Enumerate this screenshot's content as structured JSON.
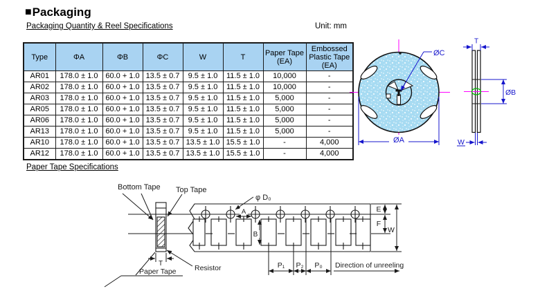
{
  "page": {
    "title_bullet": "■",
    "title": "Packaging",
    "section1": "Packaging Quantity & Reel Specifications",
    "unit_label": "Unit: mm",
    "section2": "Paper Tape Specifications"
  },
  "table": {
    "headers": [
      "Type",
      "ΦA",
      "ΦB",
      "ΦC",
      "W",
      "T",
      "Paper Tape (EA)",
      "Embossed Plastic Tape (EA)"
    ],
    "rows": [
      [
        "AR01",
        "178.0 ± 1.0",
        "60.0 + 1.0",
        "13.5 ± 0.7",
        "9.5 ± 1.0",
        "11.5 ± 1.0",
        "10,000",
        "-"
      ],
      [
        "AR02",
        "178.0 ± 1.0",
        "60.0 + 1.0",
        "13.5 ± 0.7",
        "9.5 ± 1.0",
        "11.5 ± 1.0",
        "10,000",
        "-"
      ],
      [
        "AR03",
        "178.0 ± 1.0",
        "60.0 + 1.0",
        "13.5 ± 0.7",
        "9.5 ± 1.0",
        "11.5 ± 1.0",
        "5,000",
        "-"
      ],
      [
        "AR05",
        "178.0 ± 1.0",
        "60.0 + 1.0",
        "13.5 ± 0.7",
        "9.5 ± 1.0",
        "11.5 ± 1.0",
        "5,000",
        "-"
      ],
      [
        "AR06",
        "178.0 ± 1.0",
        "60.0 + 1.0",
        "13.5 ± 0.7",
        "9.5 ± 1.0",
        "11.5 ± 1.0",
        "5,000",
        "-"
      ],
      [
        "AR13",
        "178.0 ± 1.0",
        "60.0 + 1.0",
        "13.5 ± 0.7",
        "9.5 ± 1.0",
        "11.5 ± 1.0",
        "5,000",
        "-"
      ],
      [
        "AR10",
        "178.0 ± 1.0",
        "60.0 + 1.0",
        "13.5 ± 0.7",
        "13.5 ± 1.0",
        "15.5 ± 1.0",
        "-",
        "4,000"
      ],
      [
        "AR12",
        "178.0 ± 1.0",
        "60.0 + 1.0",
        "13.5 ± 0.7",
        "13.5 ± 1.0",
        "15.5 ± 1.0",
        "-",
        "4,000"
      ]
    ]
  },
  "reel_diagram": {
    "labels": {
      "dia_c": "ØC",
      "dia_a": "ØA",
      "t": "T",
      "dia_b": "ØB",
      "w": "W"
    },
    "colors": {
      "reel_fill": "#a7dbf2",
      "dimension_blue": "#1414cc",
      "crosshair_magenta": "#ff00ff",
      "hub_green": "#00b400"
    }
  },
  "tape_diagram": {
    "labels": {
      "bottom_tape": "Bottom Tape",
      "top_tape": "Top Tape",
      "phi_d0": "φ D₀",
      "a": "A",
      "b": "B",
      "e": "E",
      "f": "F",
      "w": "W",
      "p1": "P₁",
      "p2": "P₂",
      "p0": "P₀",
      "t": "T",
      "paper_tape": "Paper Tape",
      "resistor": "Resistor",
      "direction": "Direction of unreeling"
    }
  }
}
